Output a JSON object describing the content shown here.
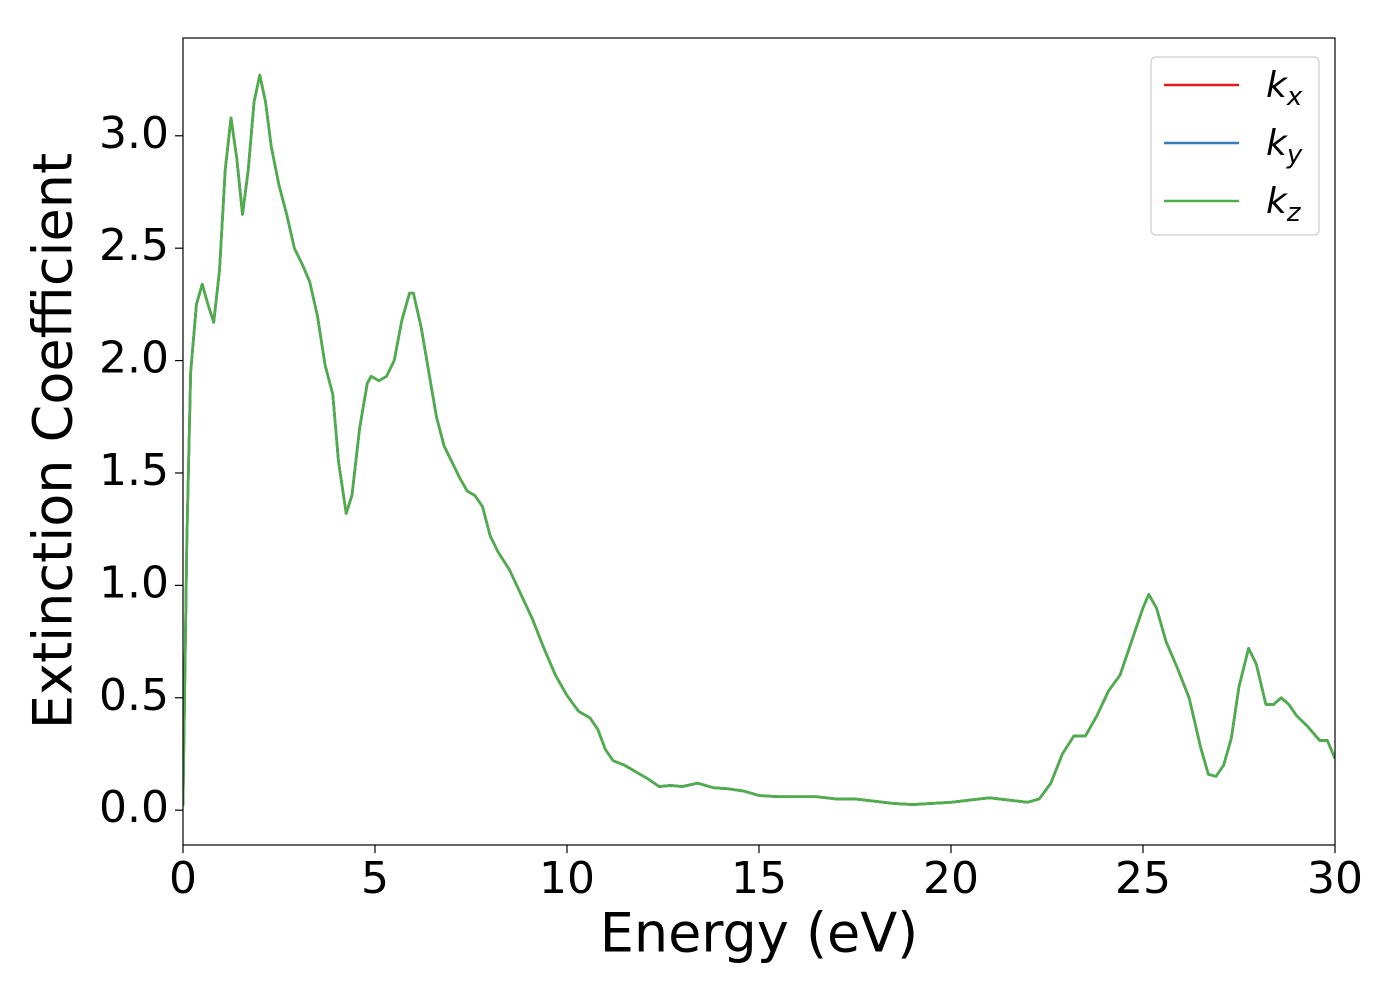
{
  "chart_data": {
    "type": "line",
    "xlabel": "Energy (eV)",
    "ylabel": "Extinction Coefficient",
    "x": [
      0.0,
      0.1,
      0.2,
      0.35,
      0.5,
      0.65,
      0.8,
      0.95,
      1.1,
      1.25,
      1.4,
      1.55,
      1.7,
      1.85,
      2.0,
      2.15,
      2.3,
      2.5,
      2.7,
      2.9,
      3.1,
      3.3,
      3.5,
      3.7,
      3.9,
      4.05,
      4.25,
      4.4,
      4.6,
      4.8,
      4.9,
      5.1,
      5.3,
      5.5,
      5.7,
      5.9,
      6.0,
      6.2,
      6.4,
      6.6,
      6.8,
      7.0,
      7.2,
      7.4,
      7.6,
      7.8,
      8.0,
      8.2,
      8.5,
      8.8,
      9.1,
      9.4,
      9.7,
      10.0,
      10.3,
      10.6,
      10.8,
      11.0,
      11.2,
      11.5,
      11.8,
      12.1,
      12.4,
      12.7,
      13.0,
      13.4,
      13.8,
      14.2,
      14.6,
      15.0,
      15.5,
      16.0,
      16.5,
      17.0,
      17.5,
      18.0,
      18.5,
      19.0,
      19.5,
      20.0,
      20.5,
      21.0,
      21.5,
      22.0,
      22.3,
      22.6,
      22.9,
      23.2,
      23.5,
      23.8,
      24.1,
      24.4,
      24.7,
      25.0,
      25.15,
      25.35,
      25.6,
      25.9,
      26.2,
      26.5,
      26.7,
      26.9,
      27.1,
      27.3,
      27.5,
      27.75,
      27.95,
      28.2,
      28.4,
      28.6,
      28.8,
      29.0,
      29.3,
      29.6,
      29.8,
      30.0
    ],
    "series": [
      {
        "name": "kx",
        "color": "#e41a1c",
        "values": [
          0.02,
          1.2,
          1.95,
          2.25,
          2.34,
          2.25,
          2.17,
          2.4,
          2.85,
          3.08,
          2.9,
          2.65,
          2.85,
          3.15,
          3.27,
          3.15,
          2.95,
          2.78,
          2.65,
          2.5,
          2.43,
          2.35,
          2.2,
          1.98,
          1.85,
          1.55,
          1.32,
          1.4,
          1.7,
          1.9,
          1.93,
          1.91,
          1.93,
          2.0,
          2.18,
          2.3,
          2.3,
          2.15,
          1.95,
          1.75,
          1.62,
          1.55,
          1.48,
          1.42,
          1.4,
          1.35,
          1.22,
          1.15,
          1.07,
          0.96,
          0.85,
          0.72,
          0.6,
          0.51,
          0.44,
          0.41,
          0.36,
          0.27,
          0.22,
          0.2,
          0.17,
          0.14,
          0.105,
          0.11,
          0.105,
          0.12,
          0.1,
          0.095,
          0.085,
          0.065,
          0.06,
          0.06,
          0.06,
          0.05,
          0.05,
          0.04,
          0.03,
          0.025,
          0.03,
          0.035,
          0.045,
          0.055,
          0.045,
          0.035,
          0.05,
          0.12,
          0.25,
          0.33,
          0.33,
          0.42,
          0.53,
          0.6,
          0.75,
          0.9,
          0.96,
          0.9,
          0.75,
          0.63,
          0.5,
          0.28,
          0.16,
          0.15,
          0.2,
          0.32,
          0.55,
          0.72,
          0.65,
          0.47,
          0.47,
          0.5,
          0.47,
          0.42,
          0.37,
          0.31,
          0.31,
          0.23
        ]
      },
      {
        "name": "ky",
        "color": "#377eb8",
        "values": [
          0.02,
          1.2,
          1.95,
          2.25,
          2.34,
          2.25,
          2.17,
          2.4,
          2.85,
          3.08,
          2.9,
          2.65,
          2.85,
          3.15,
          3.27,
          3.15,
          2.95,
          2.78,
          2.65,
          2.5,
          2.43,
          2.35,
          2.2,
          1.98,
          1.85,
          1.55,
          1.32,
          1.4,
          1.7,
          1.9,
          1.93,
          1.91,
          1.93,
          2.0,
          2.18,
          2.3,
          2.3,
          2.15,
          1.95,
          1.75,
          1.62,
          1.55,
          1.48,
          1.42,
          1.4,
          1.35,
          1.22,
          1.15,
          1.07,
          0.96,
          0.85,
          0.72,
          0.6,
          0.51,
          0.44,
          0.41,
          0.36,
          0.27,
          0.22,
          0.2,
          0.17,
          0.14,
          0.105,
          0.11,
          0.105,
          0.12,
          0.1,
          0.095,
          0.085,
          0.065,
          0.06,
          0.06,
          0.06,
          0.05,
          0.05,
          0.04,
          0.03,
          0.025,
          0.03,
          0.035,
          0.045,
          0.055,
          0.045,
          0.035,
          0.05,
          0.12,
          0.25,
          0.33,
          0.33,
          0.42,
          0.53,
          0.6,
          0.75,
          0.9,
          0.96,
          0.9,
          0.75,
          0.63,
          0.5,
          0.28,
          0.16,
          0.15,
          0.2,
          0.32,
          0.55,
          0.72,
          0.65,
          0.47,
          0.47,
          0.5,
          0.47,
          0.42,
          0.37,
          0.31,
          0.31,
          0.23
        ]
      },
      {
        "name": "kz",
        "color": "#4daf4a",
        "values": [
          0.02,
          1.2,
          1.95,
          2.25,
          2.34,
          2.25,
          2.17,
          2.4,
          2.85,
          3.08,
          2.9,
          2.65,
          2.85,
          3.15,
          3.27,
          3.15,
          2.95,
          2.78,
          2.65,
          2.5,
          2.43,
          2.35,
          2.2,
          1.98,
          1.85,
          1.55,
          1.32,
          1.4,
          1.7,
          1.9,
          1.93,
          1.91,
          1.93,
          2.0,
          2.18,
          2.3,
          2.3,
          2.15,
          1.95,
          1.75,
          1.62,
          1.55,
          1.48,
          1.42,
          1.4,
          1.35,
          1.22,
          1.15,
          1.07,
          0.96,
          0.85,
          0.72,
          0.6,
          0.51,
          0.44,
          0.41,
          0.36,
          0.27,
          0.22,
          0.2,
          0.17,
          0.14,
          0.105,
          0.11,
          0.105,
          0.12,
          0.1,
          0.095,
          0.085,
          0.065,
          0.06,
          0.06,
          0.06,
          0.05,
          0.05,
          0.04,
          0.03,
          0.025,
          0.03,
          0.035,
          0.045,
          0.055,
          0.045,
          0.035,
          0.05,
          0.12,
          0.25,
          0.33,
          0.33,
          0.42,
          0.53,
          0.6,
          0.75,
          0.9,
          0.96,
          0.9,
          0.75,
          0.63,
          0.5,
          0.28,
          0.16,
          0.15,
          0.2,
          0.32,
          0.55,
          0.72,
          0.65,
          0.47,
          0.47,
          0.5,
          0.47,
          0.42,
          0.37,
          0.31,
          0.31,
          0.23
        ]
      }
    ],
    "xlim": [
      0,
      30
    ],
    "xticks": [
      0,
      5,
      10,
      15,
      20,
      25,
      30
    ],
    "ylim": [
      -0.155,
      3.435
    ],
    "yticks": [
      {
        "value": 0,
        "label": "0.0"
      },
      0.5,
      {
        "value": 1,
        "label": "1.0"
      },
      1.5,
      {
        "value": 2,
        "label": "2.0"
      },
      2.5,
      {
        "value": 3,
        "label": "3.0"
      }
    ],
    "grid": false,
    "legend": "upper right"
  }
}
